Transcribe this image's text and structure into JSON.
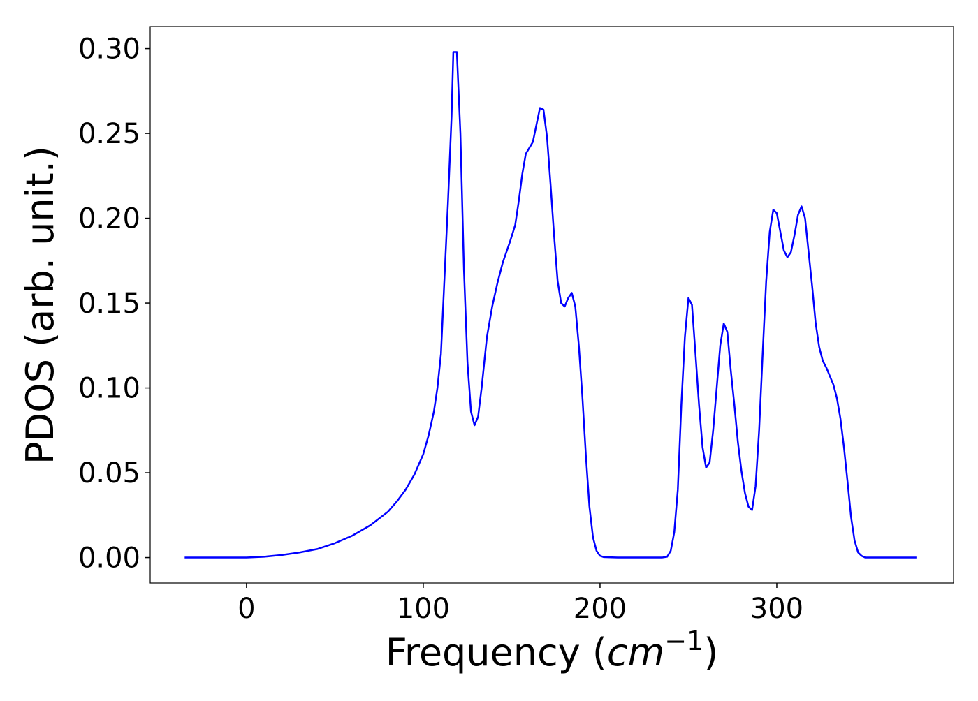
{
  "chart_data": {
    "type": "line",
    "y_label": "PDOS (arb. unit.)",
    "x_label": "Frequency (",
    "x_label_unit": "cm",
    "x_label_exponent": "−1",
    "x_label_close": ")",
    "x": [
      -35,
      0,
      10,
      20,
      30,
      40,
      50,
      60,
      70,
      80,
      85,
      90,
      95,
      100,
      103,
      106,
      108,
      110,
      112,
      114,
      116,
      117,
      119,
      121,
      123,
      125,
      127,
      129,
      131,
      133,
      136,
      139,
      142,
      145,
      149,
      152,
      154,
      156,
      158,
      162,
      166,
      168,
      170,
      172,
      174,
      176,
      178,
      180,
      182,
      184,
      186,
      188,
      190,
      192,
      194,
      196,
      198,
      200,
      202,
      210,
      235,
      238,
      240,
      242,
      244,
      246,
      248,
      250,
      252,
      254,
      256,
      258,
      260,
      262,
      264,
      266,
      268,
      270,
      272,
      274,
      276,
      278,
      280,
      282,
      284,
      286,
      288,
      290,
      292,
      294,
      296,
      298,
      300,
      302,
      304,
      306,
      308,
      310,
      312,
      314,
      316,
      318,
      320,
      322,
      324,
      326,
      328,
      330,
      332,
      334,
      336,
      338,
      340,
      342,
      344,
      346,
      348,
      350,
      379
    ],
    "series": [
      {
        "color": "#0000ff",
        "values": [
          0,
          0,
          0.0005,
          0.0015,
          0.003,
          0.005,
          0.0085,
          0.013,
          0.019,
          0.027,
          0.033,
          0.04,
          0.049,
          0.061,
          0.072,
          0.086,
          0.1,
          0.12,
          0.165,
          0.21,
          0.26,
          0.298,
          0.298,
          0.25,
          0.17,
          0.115,
          0.086,
          0.078,
          0.083,
          0.1,
          0.13,
          0.148,
          0.162,
          0.174,
          0.186,
          0.196,
          0.21,
          0.226,
          0.238,
          0.245,
          0.265,
          0.264,
          0.248,
          0.22,
          0.19,
          0.163,
          0.15,
          0.148,
          0.153,
          0.156,
          0.148,
          0.125,
          0.095,
          0.06,
          0.03,
          0.012,
          0.004,
          0.001,
          0.0003,
          0,
          0,
          0.0005,
          0.004,
          0.015,
          0.04,
          0.09,
          0.13,
          0.153,
          0.149,
          0.12,
          0.09,
          0.065,
          0.053,
          0.056,
          0.075,
          0.1,
          0.125,
          0.138,
          0.133,
          0.11,
          0.09,
          0.068,
          0.051,
          0.038,
          0.03,
          0.028,
          0.042,
          0.075,
          0.12,
          0.163,
          0.192,
          0.205,
          0.203,
          0.192,
          0.181,
          0.177,
          0.18,
          0.19,
          0.202,
          0.207,
          0.2,
          0.18,
          0.16,
          0.138,
          0.124,
          0.116,
          0.112,
          0.107,
          0.102,
          0.094,
          0.082,
          0.065,
          0.045,
          0.024,
          0.01,
          0.003,
          0.001,
          0,
          0
        ]
      }
    ],
    "xlim": [
      -54.5,
      400
    ],
    "ylim": [
      -0.015,
      0.313
    ],
    "xticks": [
      0,
      100,
      200,
      300
    ],
    "yticks": [
      {
        "value": 0,
        "label": "0.00"
      },
      {
        "value": 0.05,
        "label": "0.05"
      },
      {
        "value": 0.1,
        "label": "0.10"
      },
      {
        "value": 0.15,
        "label": "0.15"
      },
      {
        "value": 0.2,
        "label": "0.20"
      },
      {
        "value": 0.25,
        "label": "0.25"
      },
      {
        "value": 0.3,
        "label": "0.30"
      }
    ],
    "grid": false
  }
}
